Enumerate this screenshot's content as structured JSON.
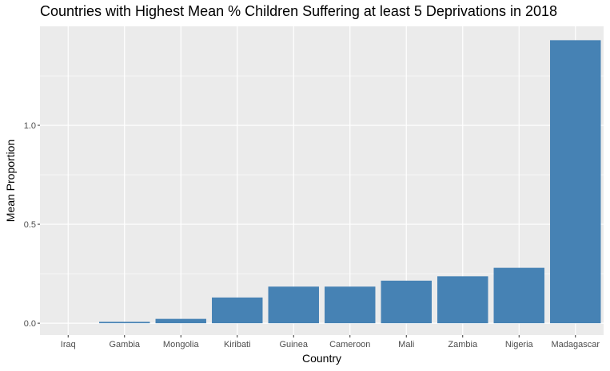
{
  "chart_data": {
    "type": "bar",
    "title": "Countries with Highest Mean % Children Suffering at least 5 Deprivations in 2018",
    "xlabel": "Country",
    "ylabel": "Mean Proportion",
    "categories": [
      "Iraq",
      "Gambia",
      "Mongolia",
      "Kiribati",
      "Guinea",
      "Cameroon",
      "Mali",
      "Zambia",
      "Nigeria",
      "Madagascar"
    ],
    "values": [
      0.0,
      0.007,
      0.022,
      0.13,
      0.185,
      0.185,
      0.215,
      0.237,
      0.28,
      1.43
    ],
    "yticks": [
      "0.0",
      "0.5",
      "1.0"
    ],
    "ylim": [
      -0.06,
      1.5
    ],
    "grid": true,
    "bar_color": "#4682B4",
    "panel_color": "#EBEBEB",
    "grid_color": "#FFFFFF"
  }
}
